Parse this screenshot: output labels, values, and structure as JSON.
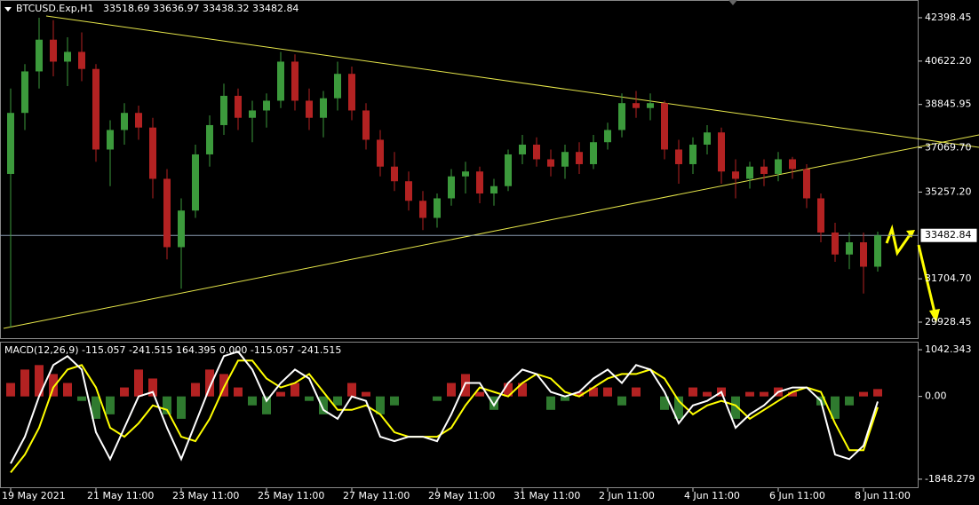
{
  "chart_data": [
    {
      "type": "candlestick",
      "title": "BTCUSD.Exp,H1",
      "subtitle": "33518.69 33636.97 33438.32 33482.84",
      "categories": [
        "19 May 2021",
        null,
        null,
        null,
        null,
        null,
        "21 May 11:00",
        null,
        null,
        null,
        null,
        null,
        "23 May 11:00",
        null,
        null,
        null,
        null,
        null,
        "25 May 11:00",
        null,
        null,
        null,
        null,
        null,
        "27 May 11:00",
        null,
        null,
        null,
        null,
        null,
        "29 May 11:00",
        null,
        null,
        null,
        null,
        null,
        "31 May 11:00",
        null,
        null,
        null,
        null,
        null,
        "2 Jun 11:00",
        null,
        null,
        null,
        null,
        null,
        "4 Jun 11:00",
        null,
        null,
        null,
        null,
        null,
        "6 Jun 11:00",
        null,
        null,
        null,
        null,
        null,
        "8 Jun 11:00",
        null
      ],
      "open": [
        36000,
        38500,
        40200,
        41500,
        40600,
        41000,
        40300,
        37000,
        37800,
        38500,
        37900,
        35800,
        33000,
        34500,
        36800,
        38000,
        39200,
        38300,
        38600,
        39000,
        40600,
        39000,
        38300,
        39100,
        40100,
        38600,
        37400,
        36300,
        35700,
        34900,
        34200,
        35000,
        35900,
        36100,
        35200,
        35500,
        36800,
        37200,
        36600,
        36300,
        36900,
        36400,
        37300,
        37800,
        38900,
        38700,
        38900,
        37000,
        36400,
        37200,
        37700,
        36100,
        35800,
        36300,
        36000,
        36600,
        36200,
        35000,
        33600,
        32700,
        33200,
        32200
      ],
      "high": [
        39500,
        40500,
        42400,
        42300,
        41600,
        41800,
        40500,
        38200,
        38900,
        38800,
        38300,
        36200,
        35000,
        37200,
        38400,
        39700,
        39500,
        39000,
        39300,
        41000,
        40900,
        39500,
        39400,
        40600,
        40400,
        38900,
        37800,
        36900,
        36100,
        35300,
        35200,
        36200,
        36500,
        36300,
        35800,
        37000,
        37600,
        37500,
        37000,
        37200,
        37300,
        37600,
        38100,
        39300,
        39400,
        39300,
        39000,
        37400,
        37500,
        38000,
        37900,
        36600,
        36500,
        36600,
        36900,
        36700,
        36400,
        35200,
        34000,
        33600,
        33600,
        33637
      ],
      "low": [
        29700,
        37800,
        39500,
        40000,
        39600,
        39800,
        36500,
        35500,
        37200,
        37400,
        35000,
        32500,
        31300,
        34200,
        36300,
        37600,
        37800,
        37300,
        37900,
        38700,
        38600,
        37800,
        37500,
        38600,
        38200,
        37000,
        35900,
        35300,
        34500,
        33700,
        33800,
        34700,
        35200,
        34800,
        34700,
        35300,
        36400,
        36300,
        35900,
        35800,
        36000,
        36200,
        37000,
        37500,
        38300,
        38200,
        36600,
        35600,
        36000,
        36800,
        35600,
        35000,
        35400,
        35500,
        35700,
        35800,
        34600,
        33200,
        32400,
        32100,
        31100,
        32000
      ],
      "close": [
        38500,
        40200,
        41500,
        40600,
        41000,
        40300,
        37000,
        37800,
        38500,
        37900,
        35800,
        33000,
        34500,
        36800,
        38000,
        39200,
        38300,
        38600,
        39000,
        40600,
        39000,
        38300,
        39100,
        40100,
        38600,
        37400,
        36300,
        35700,
        34900,
        34200,
        35000,
        35900,
        36100,
        35200,
        35500,
        36800,
        37200,
        36600,
        36300,
        36900,
        36400,
        37300,
        37800,
        38900,
        38700,
        38900,
        37000,
        36400,
        37200,
        37700,
        36100,
        35800,
        36300,
        36000,
        36600,
        36200,
        35000,
        33600,
        32700,
        33200,
        32200,
        33483
      ],
      "up_color": "#3c9a3c",
      "down_color": "#b32222",
      "ylim": [
        29237,
        43125
      ],
      "yticks": [
        42398.45,
        {
          "value": 40622.2,
          "label": "40622.20"
        },
        38845.95,
        {
          "value": 37069.7,
          "label": "37069.70"
        },
        {
          "value": 35257.2,
          "label": "35257.20"
        },
        {
          "value": 31704.7,
          "label": "31704.70"
        },
        29928.45
      ],
      "current_price": 33482.84
    },
    {
      "type": "macd",
      "title": "MACD(12,26,9) -115.057 -241.515 164.395 0.000 -115.057 -241.515",
      "macd": [
        -1500,
        -900,
        0,
        700,
        900,
        600,
        -800,
        -1400,
        -700,
        0,
        100,
        -700,
        -1400,
        -600,
        200,
        900,
        1000,
        600,
        -100,
        300,
        600,
        400,
        -300,
        -500,
        0,
        -100,
        -900,
        -1000,
        -900,
        -900,
        -1000,
        -400,
        300,
        300,
        -200,
        300,
        600,
        500,
        100,
        0,
        100,
        400,
        600,
        300,
        700,
        600,
        100,
        -600,
        -200,
        -100,
        100,
        -700,
        -400,
        -200,
        100,
        200,
        200,
        -100,
        -1300,
        -1400,
        -1100,
        -115.057
      ],
      "signal": [
        -1700,
        -1300,
        -700,
        200,
        600,
        700,
        200,
        -700,
        -900,
        -600,
        -200,
        -300,
        -900,
        -1000,
        -500,
        200,
        800,
        800,
        400,
        200,
        300,
        500,
        100,
        -300,
        -300,
        -200,
        -400,
        -800,
        -900,
        -900,
        -900,
        -700,
        -200,
        200,
        100,
        0,
        300,
        500,
        400,
        100,
        0,
        200,
        400,
        500,
        500,
        600,
        400,
        -100,
        -400,
        -200,
        -100,
        -200,
        -500,
        -300,
        -100,
        100,
        200,
        100,
        -600,
        -1200,
        -1200,
        -241.515
      ],
      "histogram": [
        300,
        600,
        700,
        500,
        300,
        -100,
        -500,
        -400,
        200,
        600,
        400,
        -400,
        -500,
        300,
        600,
        500,
        200,
        -200,
        -400,
        100,
        300,
        -100,
        -400,
        -200,
        300,
        100,
        -400,
        -200,
        0,
        0,
        -100,
        300,
        500,
        100,
        -300,
        300,
        300,
        0,
        -300,
        -100,
        100,
        200,
        200,
        -200,
        200,
        0,
        -300,
        -500,
        200,
        100,
        200,
        -500,
        100,
        100,
        200,
        100,
        0,
        -200,
        -500,
        -200,
        100,
        164.395
      ],
      "macd_color": "#ffffff",
      "signal_color": "#ffff00",
      "ylim": [
        -2068,
        1222
      ],
      "yticks": [
        1042.343,
        {
          "value": 0,
          "label": "0.00"
        },
        -1848.279
      ]
    }
  ]
}
